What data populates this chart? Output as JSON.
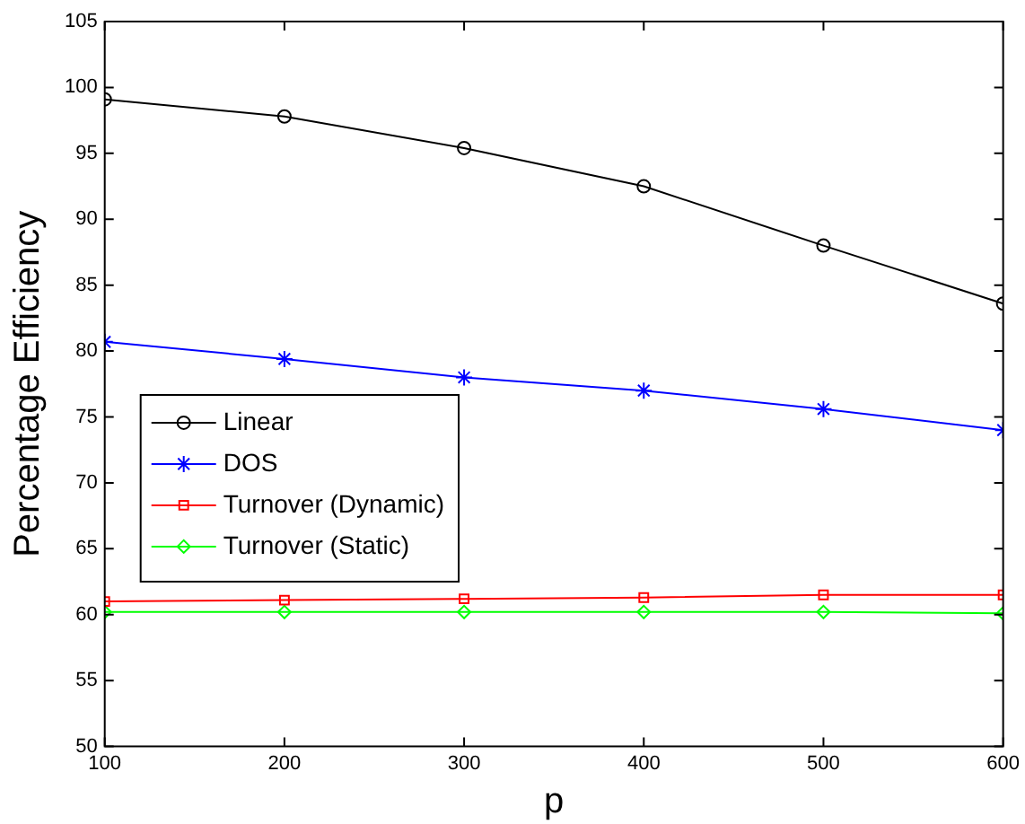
{
  "chart_data": {
    "type": "line",
    "xlabel": "p",
    "ylabel": "Percentage Efficiency",
    "x": [
      100,
      200,
      300,
      400,
      500,
      600
    ],
    "series": [
      {
        "name": "Linear",
        "color": "#000000",
        "marker": "circle",
        "values": [
          99.1,
          97.8,
          95.4,
          92.5,
          88.0,
          83.6
        ]
      },
      {
        "name": "DOS",
        "color": "#0000ff",
        "marker": "cross",
        "values": [
          80.7,
          79.4,
          78.0,
          77.0,
          75.6,
          74.0
        ]
      },
      {
        "name": "Turnover (Dynamic)",
        "color": "#ff0000",
        "marker": "square",
        "values": [
          61.0,
          61.1,
          61.2,
          61.3,
          61.5,
          61.5
        ]
      },
      {
        "name": "Turnover (Static)",
        "color": "#00ff00",
        "marker": "diamond",
        "values": [
          60.2,
          60.2,
          60.2,
          60.2,
          60.2,
          60.1
        ]
      }
    ],
    "xlim": [
      100,
      600
    ],
    "xticks": [
      100,
      200,
      300,
      400,
      500,
      600
    ],
    "ylim": [
      50,
      105
    ],
    "yticks": [
      50,
      55,
      60,
      65,
      70,
      75,
      80,
      85,
      90,
      95,
      100,
      105
    ],
    "grid": false,
    "legend": "left",
    "line_style": "solid"
  }
}
